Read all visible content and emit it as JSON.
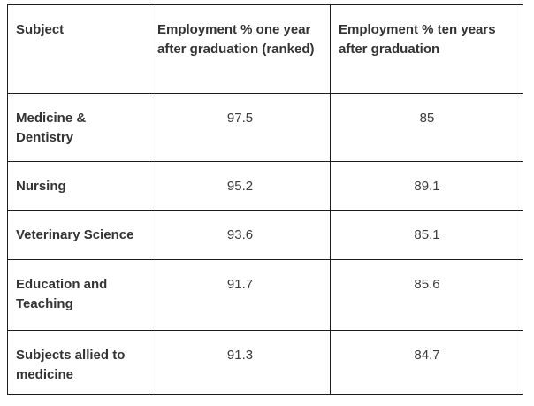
{
  "chart_data": {
    "type": "table",
    "columns": [
      "Subject",
      "Employment % one year after graduation (ranked)",
      "Employment % ten years after graduation"
    ],
    "rows": [
      [
        "Medicine & Dentistry",
        "97.5",
        "85"
      ],
      [
        "Nursing",
        "95.2",
        "89.1"
      ],
      [
        "Veterinary Science",
        "93.6",
        "85.1"
      ],
      [
        "Education and Teaching",
        "91.7",
        "85.6"
      ],
      [
        "Subjects allied to medicine",
        "91.3",
        "84.7"
      ]
    ]
  },
  "colors": {
    "border": "#1e1e1e",
    "header_text": "#333333",
    "body_text": "#3b3b3b",
    "background": "#ffffff"
  }
}
